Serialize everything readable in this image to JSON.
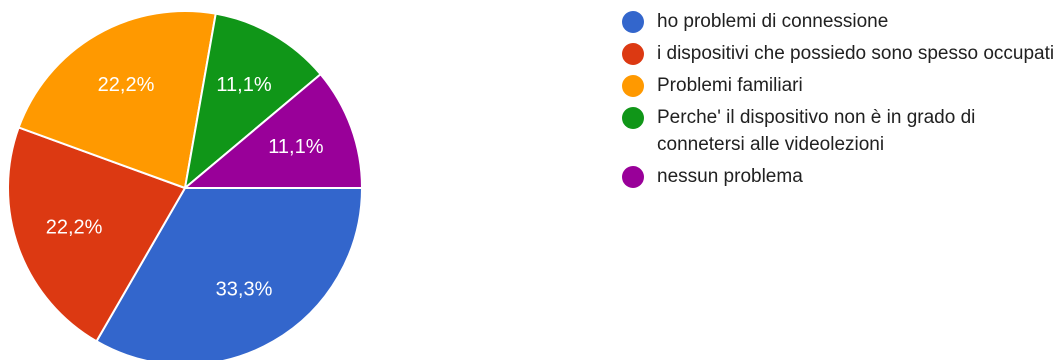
{
  "chart_data": {
    "type": "pie",
    "start_angle_deg": 0,
    "direction": "clockwise",
    "slices": [
      {
        "label": "ho problemi di connessione",
        "value": 33.3,
        "display": "33,3%",
        "color": "#3366cc"
      },
      {
        "label": "i dispositivi che possiedo sono spesso occupati",
        "value": 22.2,
        "display": "22,2%",
        "color": "#dc3912"
      },
      {
        "label": "Problemi familiari",
        "value": 22.2,
        "display": "22,2%",
        "color": "#ff9900"
      },
      {
        "label": "Perche' il dispositivo non è in grado di connetersi alle videolezioni",
        "value": 11.1,
        "display": "11,1%",
        "color": "#109618"
      },
      {
        "label": "nessun problema",
        "value": 11.1,
        "display": "11,1%",
        "color": "#990099"
      }
    ],
    "legend_position": "right"
  }
}
